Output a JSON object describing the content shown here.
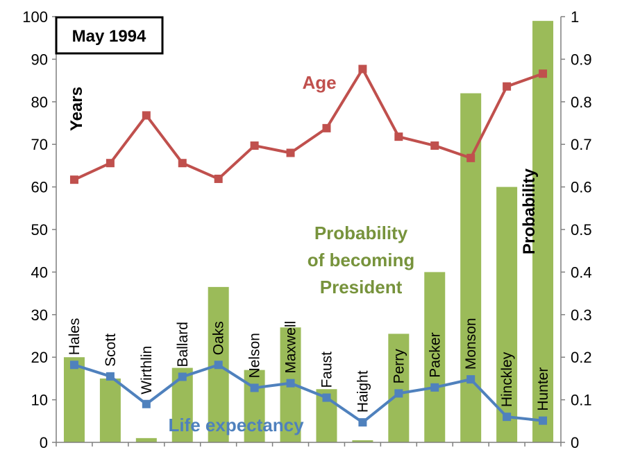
{
  "chart_data": {
    "type": "bar+line",
    "title": "May 1994",
    "categories": [
      "Hales",
      "Scott",
      "Wirthlin",
      "Ballard",
      "Oaks",
      "Nelson",
      "Maxwell",
      "Faust",
      "Haight",
      "Perry",
      "Packer",
      "Monson",
      "Hinckley",
      "Hunter"
    ],
    "left_axis": {
      "label": "Years",
      "ylim": [
        0,
        100
      ],
      "ticks": [
        "0",
        "10",
        "20",
        "30",
        "40",
        "50",
        "60",
        "70",
        "80",
        "90",
        "100"
      ]
    },
    "right_axis": {
      "label": "Probability",
      "ylim": [
        0,
        1
      ],
      "ticks": [
        "0",
        "0.1",
        "0.2",
        "0.3",
        "0.4",
        "0.5",
        "0.6",
        "0.7",
        "0.8",
        "0.9",
        "1"
      ]
    },
    "series": [
      {
        "name": "Probability of becoming President",
        "axis": "right",
        "kind": "bar",
        "color": "#9bbb59",
        "values": [
          0.2,
          0.15,
          0.01,
          0.175,
          0.365,
          0.17,
          0.27,
          0.125,
          0.005,
          0.255,
          0.4,
          0.82,
          0.6,
          0.99
        ]
      },
      {
        "name": "Age",
        "axis": "left",
        "kind": "line",
        "color": "#c0504d",
        "values": [
          61.7,
          65.6,
          76.8,
          65.6,
          61.9,
          69.7,
          68.0,
          73.8,
          87.7,
          71.8,
          69.7,
          66.8,
          83.6,
          86.6
        ]
      },
      {
        "name": "Life expectancy",
        "axis": "left",
        "kind": "line",
        "color": "#4f81bd",
        "values": [
          18.2,
          15.5,
          9.0,
          15.4,
          18.2,
          12.8,
          13.9,
          10.5,
          4.7,
          11.5,
          12.9,
          14.8,
          6.0,
          5.1
        ]
      }
    ],
    "series_labels": {
      "age": "Age",
      "life": "Life expectancy",
      "prob_lines": [
        "Probability",
        "of becoming",
        "President"
      ]
    },
    "grid": false,
    "legend": "none"
  }
}
